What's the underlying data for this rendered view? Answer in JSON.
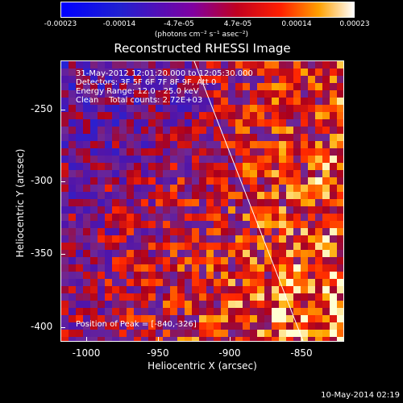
{
  "colorbar": {
    "ticks": [
      "-0.00023",
      "-0.00014",
      "-4.7e-05",
      "4.7e-05",
      "0.00014",
      "0.00023"
    ],
    "units": "(photons cm⁻² s⁻¹ asec⁻²)"
  },
  "title": "Reconstructed RHESSI Image",
  "info": {
    "line1": "31-May-2012 12:01:20.000 to 12:05:30.000",
    "line2": "Detectors: 3F 5F 6F 7F 8F 9F, Att 0",
    "line3": "Energy Range: 12.0 - 25.0 keV",
    "line4": "Clean    Total counts: 2.72E+03"
  },
  "peak": "Position of Peak = [-840,-326]",
  "axes": {
    "xlabel": "Heliocentric X (arcsec)",
    "ylabel": "Heliocentric Y (arcsec)",
    "xticks": [
      "-1000",
      "-950",
      "-900",
      "-850"
    ],
    "yticks": [
      "-250",
      "-300",
      "-350",
      "-400"
    ]
  },
  "footer": "10-May-2014 02:19"
}
